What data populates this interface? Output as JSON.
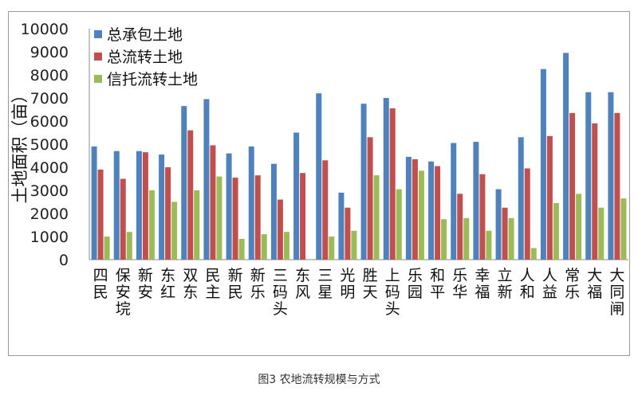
{
  "caption": "图3  农地流转规模与方式",
  "chart_data": {
    "type": "bar",
    "title": "",
    "xlabel": "",
    "ylabel": "土地面积（亩）",
    "ylim": [
      0,
      10000
    ],
    "yticks": [
      0,
      1000,
      2000,
      3000,
      4000,
      5000,
      6000,
      7000,
      8000,
      9000,
      10000
    ],
    "grid": false,
    "legend_position": "top-left",
    "categories": [
      "四民",
      "保安垸",
      "新安",
      "东红",
      "双东",
      "民主",
      "新民",
      "新乐",
      "三码头",
      "东风",
      "三星",
      "光明",
      "胜天",
      "上码头",
      "乐园",
      "和平",
      "乐华",
      "幸福",
      "立新",
      "人和",
      "人益",
      "常乐",
      "大福",
      "大同闸"
    ],
    "series": [
      {
        "name": "总承包土地",
        "color": "#4f81bd",
        "values": [
          4900,
          4700,
          4700,
          4550,
          6650,
          6950,
          4600,
          4900,
          4150,
          5500,
          7200,
          2900,
          6750,
          7000,
          4450,
          4250,
          5050,
          5100,
          3050,
          5300,
          8250,
          8950,
          7250,
          7250
        ]
      },
      {
        "name": "总流转土地",
        "color": "#c0504d",
        "values": [
          3900,
          3500,
          4650,
          4000,
          5600,
          4950,
          3550,
          3650,
          2600,
          3750,
          4300,
          2250,
          5300,
          6550,
          4350,
          4050,
          2850,
          3700,
          2250,
          3950,
          5350,
          6350,
          5900,
          6350
        ]
      },
      {
        "name": "信托流转土地",
        "color": "#9bbb59",
        "values": [
          1000,
          1200,
          3000,
          2500,
          3000,
          3600,
          900,
          1100,
          1200,
          0,
          1000,
          1250,
          3650,
          3050,
          3850,
          1750,
          1800,
          1250,
          1800,
          500,
          2450,
          2850,
          2250,
          2650
        ]
      }
    ]
  }
}
